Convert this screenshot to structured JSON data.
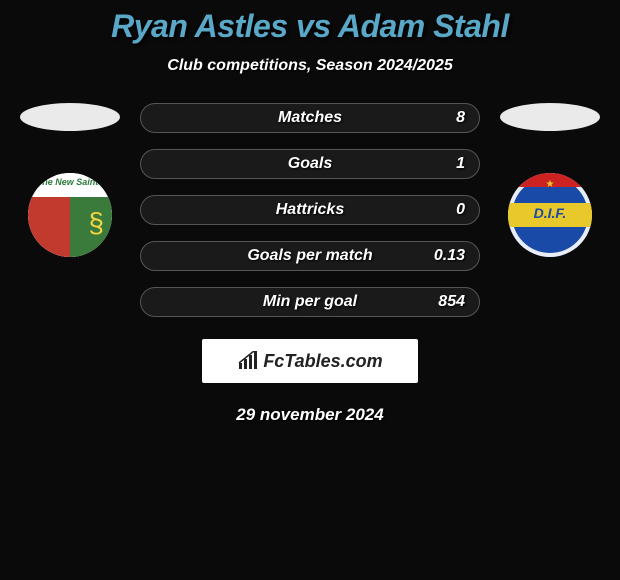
{
  "title": "Ryan Astles vs Adam Stahl",
  "title_color": "#5aa8c8",
  "title_fontsize": 32,
  "subtitle": "Club competitions, Season 2024/2025",
  "subtitle_fontsize": 16,
  "left_oval_color": "#eaeaea",
  "right_oval_color": "#eaeaea",
  "left_badge_name": "The New Saints",
  "right_badge_name": "D.I.F.",
  "stats": {
    "row_bg": "#1a1a1a",
    "row_border": "#555555",
    "label_fontsize": 16,
    "value_fontsize": 16,
    "rows": [
      {
        "label": "Matches",
        "value": "8"
      },
      {
        "label": "Goals",
        "value": "1"
      },
      {
        "label": "Hattricks",
        "value": "0"
      },
      {
        "label": "Goals per match",
        "value": "0.13"
      },
      {
        "label": "Min per goal",
        "value": "854"
      }
    ]
  },
  "branding": {
    "text": "FcTables.com",
    "box_bg": "#ffffff",
    "text_color": "#222222",
    "icon_color": "#222222"
  },
  "date": "29 november 2024",
  "date_fontsize": 17,
  "background_color": "#0a0a0a",
  "text_color": "#ffffff"
}
